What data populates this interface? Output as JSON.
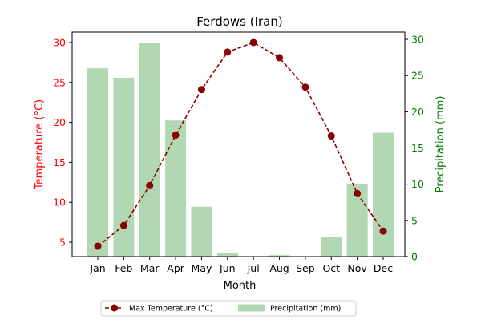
{
  "chart_data": {
    "type": "bar",
    "title": "Ferdows (Iran)",
    "xlabel": "Month",
    "ylabel_left": "Temperature (°C)",
    "ylabel_right": "Precipitation (mm)",
    "categories": [
      "Jan",
      "Feb",
      "Mar",
      "Apr",
      "May",
      "Jun",
      "Jul",
      "Aug",
      "Sep",
      "Oct",
      "Nov",
      "Dec"
    ],
    "series": [
      {
        "name": "Max Temperature (°C)",
        "type": "line",
        "axis": "left",
        "values": [
          4.5,
          7.1,
          12.1,
          18.4,
          24.1,
          28.8,
          30.0,
          28.1,
          24.4,
          18.3,
          11.1,
          6.4
        ]
      },
      {
        "name": "Precipitation (mm)",
        "type": "bar",
        "axis": "right",
        "values": [
          26.0,
          24.7,
          29.5,
          18.8,
          6.9,
          0.5,
          0.0,
          0.2,
          0.0,
          2.7,
          10.0,
          17.1
        ]
      }
    ],
    "ylim_left": [
      3.2,
      31.3
    ],
    "ylim_right": [
      0,
      31.0
    ],
    "yticks_left": [
      5,
      10,
      15,
      20,
      25,
      30
    ],
    "yticks_right": [
      0,
      5,
      10,
      15,
      20,
      25,
      30
    ],
    "grid": false,
    "legend_position": "bottom-center"
  },
  "colors": {
    "temperature_line": "#8b0000",
    "precip_bar": "#b1d8b2",
    "left_axis": "#ff0000",
    "right_axis": "#008000",
    "text": "#000000"
  }
}
